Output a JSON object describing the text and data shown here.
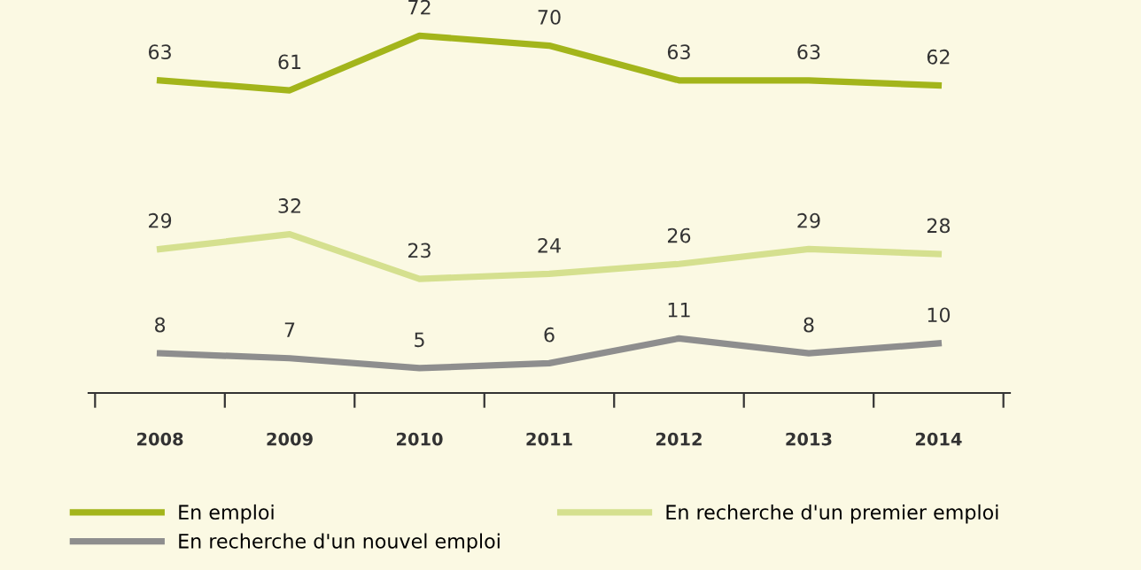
{
  "chart_data": {
    "type": "line",
    "categories": [
      "2008",
      "2009",
      "2010",
      "2011",
      "2012",
      "2013",
      "2014"
    ],
    "series": [
      {
        "name": "En emploi",
        "color": "#a3b51b",
        "values": [
          63,
          61,
          72,
          70,
          63,
          63,
          62
        ]
      },
      {
        "name": "En recherche d'un premier emploi",
        "color": "#d5e08f",
        "values": [
          29,
          32,
          23,
          24,
          26,
          29,
          28
        ]
      },
      {
        "name": "En recherche d'un nouvel emploi",
        "color": "#8e8e8e",
        "values": [
          8,
          7,
          5,
          6,
          11,
          8,
          10
        ]
      }
    ],
    "tick_labels": "x",
    "data_labels": true,
    "legend": "bottom",
    "grid": false,
    "marker": "none",
    "line_style": "solid"
  }
}
